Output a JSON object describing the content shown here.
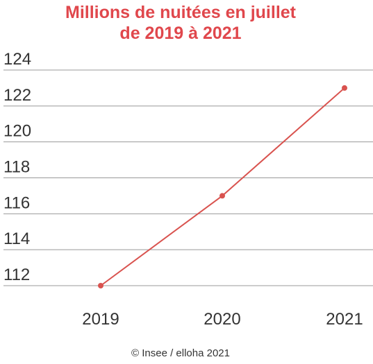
{
  "chart_data": {
    "type": "line",
    "title": [
      "Millions de nuitées en juillet",
      "de 2019 à 2021"
    ],
    "categories": [
      "2019",
      "2020",
      "2021"
    ],
    "values": [
      112,
      117,
      123
    ],
    "color": "#d9534f",
    "ylim": [
      112,
      124
    ],
    "yticks": [
      112,
      114,
      116,
      118,
      120,
      122,
      124
    ],
    "grid": true,
    "source": "© Insee / elloha 2021"
  }
}
